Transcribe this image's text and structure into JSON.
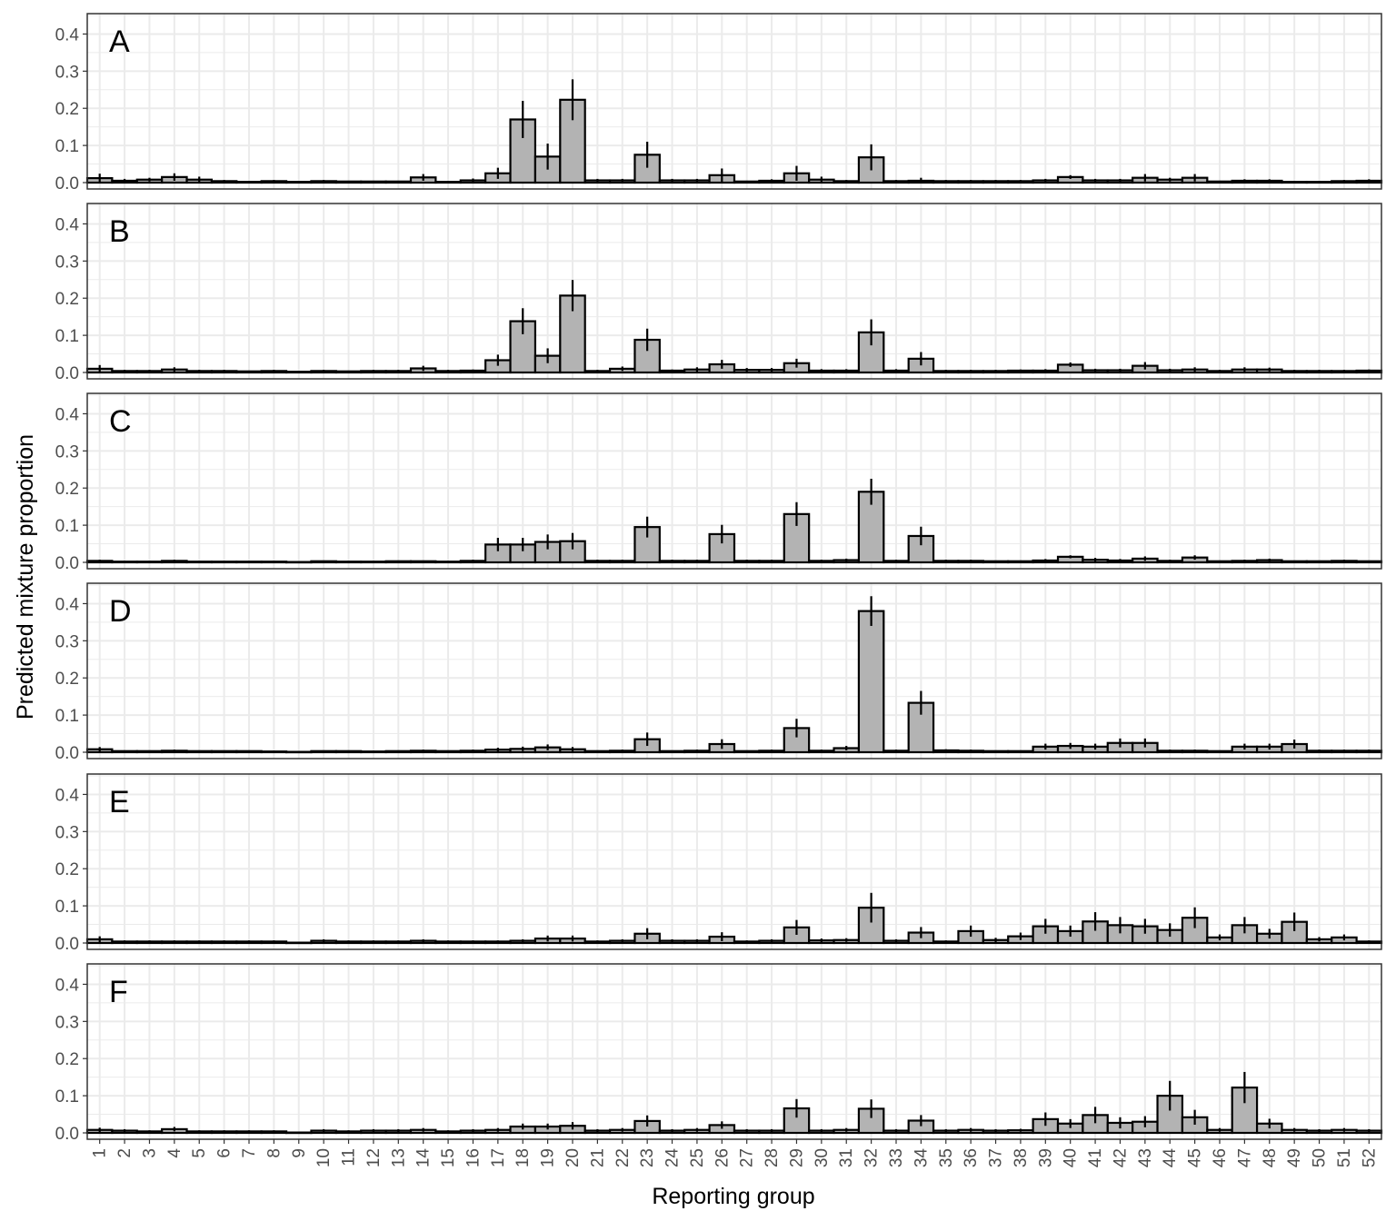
{
  "chart_data": {
    "type": "bar",
    "xlabel": "Reporting group",
    "ylabel": "Predicted mixture proportion",
    "ylim": [
      0,
      0.45
    ],
    "y_ticks": [
      "0.0",
      "0.1",
      "0.2",
      "0.3",
      "0.4"
    ],
    "y_tick_values": [
      0,
      0.1,
      0.2,
      0.3,
      0.4
    ],
    "categories": [
      "1",
      "2",
      "3",
      "4",
      "5",
      "6",
      "7",
      "8",
      "9",
      "10",
      "11",
      "12",
      "13",
      "14",
      "15",
      "16",
      "17",
      "18",
      "19",
      "20",
      "21",
      "22",
      "23",
      "24",
      "25",
      "26",
      "27",
      "28",
      "29",
      "30",
      "31",
      "32",
      "33",
      "34",
      "35",
      "36",
      "37",
      "38",
      "39",
      "40",
      "41",
      "42",
      "43",
      "44",
      "45",
      "46",
      "47",
      "48",
      "49",
      "50",
      "51",
      "52"
    ],
    "grid": true,
    "bar_fill": "#b3b3b3",
    "bar_stroke": "#000000",
    "grid_color": "#ebebeb",
    "panels": [
      {
        "name": "A",
        "values": [
          0.012,
          0.005,
          0.008,
          0.015,
          0.008,
          0.004,
          0.002,
          0.004,
          0.002,
          0.004,
          0.003,
          0.003,
          0.003,
          0.014,
          0.002,
          0.006,
          0.025,
          0.17,
          0.07,
          0.223,
          0.006,
          0.006,
          0.075,
          0.006,
          0.006,
          0.02,
          0.003,
          0.005,
          0.025,
          0.008,
          0.004,
          0.068,
          0.004,
          0.005,
          0.004,
          0.004,
          0.004,
          0.004,
          0.006,
          0.015,
          0.006,
          0.006,
          0.013,
          0.008,
          0.013,
          0.003,
          0.005,
          0.005,
          0.002,
          0.002,
          0.004,
          0.005
        ],
        "errors": [
          0.012,
          0.005,
          0.005,
          0.01,
          0.008,
          0.003,
          0.002,
          0.003,
          0.001,
          0.003,
          0.002,
          0.002,
          0.002,
          0.009,
          0.002,
          0.005,
          0.015,
          0.05,
          0.035,
          0.055,
          0.004,
          0.004,
          0.035,
          0.004,
          0.004,
          0.018,
          0.002,
          0.004,
          0.02,
          0.008,
          0.003,
          0.035,
          0.003,
          0.008,
          0.003,
          0.003,
          0.003,
          0.003,
          0.004,
          0.005,
          0.004,
          0.004,
          0.01,
          0.005,
          0.01,
          0.002,
          0.004,
          0.004,
          0.002,
          0.002,
          0.003,
          0.004
        ]
      },
      {
        "name": "B",
        "values": [
          0.01,
          0.004,
          0.004,
          0.008,
          0.004,
          0.004,
          0.003,
          0.004,
          0.002,
          0.004,
          0.003,
          0.004,
          0.004,
          0.011,
          0.004,
          0.005,
          0.033,
          0.138,
          0.045,
          0.207,
          0.004,
          0.01,
          0.088,
          0.005,
          0.008,
          0.022,
          0.007,
          0.007,
          0.025,
          0.005,
          0.005,
          0.108,
          0.005,
          0.037,
          0.004,
          0.004,
          0.004,
          0.005,
          0.005,
          0.021,
          0.006,
          0.006,
          0.018,
          0.006,
          0.008,
          0.004,
          0.008,
          0.008,
          0.004,
          0.004,
          0.004,
          0.005
        ],
        "errors": [
          0.01,
          0.003,
          0.003,
          0.006,
          0.003,
          0.003,
          0.002,
          0.003,
          0.001,
          0.003,
          0.002,
          0.003,
          0.003,
          0.007,
          0.003,
          0.003,
          0.015,
          0.035,
          0.02,
          0.042,
          0.003,
          0.006,
          0.03,
          0.003,
          0.006,
          0.012,
          0.005,
          0.005,
          0.012,
          0.004,
          0.004,
          0.035,
          0.004,
          0.018,
          0.003,
          0.003,
          0.003,
          0.003,
          0.004,
          0.006,
          0.004,
          0.004,
          0.01,
          0.004,
          0.006,
          0.003,
          0.006,
          0.005,
          0.003,
          0.003,
          0.003,
          0.003
        ]
      },
      {
        "name": "C",
        "values": [
          0.004,
          0.002,
          0.002,
          0.004,
          0.002,
          0.002,
          0.002,
          0.002,
          0.001,
          0.003,
          0.002,
          0.002,
          0.003,
          0.003,
          0.002,
          0.004,
          0.048,
          0.048,
          0.055,
          0.057,
          0.004,
          0.004,
          0.095,
          0.004,
          0.004,
          0.076,
          0.004,
          0.004,
          0.13,
          0.004,
          0.006,
          0.19,
          0.004,
          0.071,
          0.004,
          0.004,
          0.003,
          0.003,
          0.005,
          0.015,
          0.007,
          0.005,
          0.01,
          0.004,
          0.013,
          0.003,
          0.004,
          0.006,
          0.003,
          0.003,
          0.004,
          0.003
        ],
        "errors": [
          0.003,
          0.002,
          0.002,
          0.003,
          0.002,
          0.002,
          0.002,
          0.002,
          0.001,
          0.002,
          0.002,
          0.002,
          0.002,
          0.002,
          0.002,
          0.003,
          0.018,
          0.018,
          0.02,
          0.022,
          0.003,
          0.003,
          0.028,
          0.003,
          0.003,
          0.025,
          0.003,
          0.003,
          0.032,
          0.003,
          0.004,
          0.035,
          0.003,
          0.025,
          0.003,
          0.003,
          0.002,
          0.002,
          0.004,
          0.004,
          0.005,
          0.004,
          0.006,
          0.003,
          0.006,
          0.002,
          0.003,
          0.004,
          0.002,
          0.002,
          0.003,
          0.002
        ]
      },
      {
        "name": "D",
        "values": [
          0.008,
          0.003,
          0.003,
          0.004,
          0.003,
          0.003,
          0.003,
          0.002,
          0.001,
          0.003,
          0.003,
          0.002,
          0.003,
          0.004,
          0.003,
          0.004,
          0.007,
          0.009,
          0.013,
          0.008,
          0.003,
          0.004,
          0.035,
          0.003,
          0.004,
          0.022,
          0.003,
          0.004,
          0.065,
          0.004,
          0.011,
          0.38,
          0.004,
          0.133,
          0.005,
          0.004,
          0.003,
          0.003,
          0.015,
          0.017,
          0.015,
          0.025,
          0.025,
          0.004,
          0.004,
          0.003,
          0.015,
          0.015,
          0.022,
          0.004,
          0.004,
          0.004
        ],
        "errors": [
          0.006,
          0.002,
          0.002,
          0.003,
          0.002,
          0.002,
          0.002,
          0.002,
          0.001,
          0.002,
          0.002,
          0.002,
          0.002,
          0.003,
          0.002,
          0.003,
          0.005,
          0.006,
          0.008,
          0.006,
          0.002,
          0.003,
          0.018,
          0.002,
          0.003,
          0.013,
          0.002,
          0.003,
          0.025,
          0.003,
          0.006,
          0.04,
          0.003,
          0.032,
          0.003,
          0.003,
          0.002,
          0.002,
          0.008,
          0.008,
          0.008,
          0.012,
          0.012,
          0.003,
          0.003,
          0.002,
          0.008,
          0.008,
          0.012,
          0.003,
          0.003,
          0.003
        ]
      },
      {
        "name": "E",
        "values": [
          0.01,
          0.004,
          0.004,
          0.004,
          0.004,
          0.004,
          0.004,
          0.004,
          0.001,
          0.006,
          0.004,
          0.004,
          0.004,
          0.006,
          0.004,
          0.004,
          0.004,
          0.006,
          0.012,
          0.012,
          0.004,
          0.006,
          0.025,
          0.006,
          0.006,
          0.017,
          0.004,
          0.006,
          0.042,
          0.007,
          0.008,
          0.095,
          0.006,
          0.028,
          0.004,
          0.032,
          0.008,
          0.018,
          0.045,
          0.032,
          0.058,
          0.048,
          0.045,
          0.035,
          0.068,
          0.015,
          0.048,
          0.025,
          0.057,
          0.01,
          0.015,
          0.004
        ],
        "errors": [
          0.008,
          0.003,
          0.003,
          0.003,
          0.003,
          0.003,
          0.003,
          0.003,
          0.001,
          0.004,
          0.003,
          0.003,
          0.003,
          0.004,
          0.003,
          0.003,
          0.003,
          0.004,
          0.008,
          0.008,
          0.003,
          0.004,
          0.015,
          0.004,
          0.004,
          0.012,
          0.003,
          0.004,
          0.02,
          0.005,
          0.005,
          0.04,
          0.004,
          0.015,
          0.003,
          0.015,
          0.006,
          0.01,
          0.02,
          0.015,
          0.025,
          0.022,
          0.02,
          0.018,
          0.028,
          0.008,
          0.022,
          0.013,
          0.025,
          0.006,
          0.008,
          0.003
        ]
      },
      {
        "name": "F",
        "values": [
          0.008,
          0.006,
          0.004,
          0.01,
          0.004,
          0.004,
          0.004,
          0.004,
          0.001,
          0.006,
          0.004,
          0.006,
          0.006,
          0.008,
          0.004,
          0.006,
          0.008,
          0.017,
          0.017,
          0.019,
          0.006,
          0.008,
          0.032,
          0.006,
          0.008,
          0.021,
          0.006,
          0.006,
          0.066,
          0.006,
          0.008,
          0.065,
          0.006,
          0.033,
          0.006,
          0.008,
          0.006,
          0.007,
          0.037,
          0.025,
          0.048,
          0.027,
          0.03,
          0.1,
          0.042,
          0.008,
          0.122,
          0.025,
          0.008,
          0.006,
          0.008,
          0.006
        ],
        "errors": [
          0.006,
          0.004,
          0.003,
          0.006,
          0.003,
          0.003,
          0.003,
          0.003,
          0.001,
          0.004,
          0.003,
          0.004,
          0.004,
          0.005,
          0.003,
          0.004,
          0.005,
          0.008,
          0.008,
          0.01,
          0.004,
          0.005,
          0.015,
          0.004,
          0.005,
          0.01,
          0.004,
          0.004,
          0.025,
          0.004,
          0.005,
          0.025,
          0.004,
          0.015,
          0.004,
          0.005,
          0.004,
          0.004,
          0.018,
          0.012,
          0.022,
          0.015,
          0.015,
          0.04,
          0.02,
          0.005,
          0.042,
          0.013,
          0.005,
          0.004,
          0.005,
          0.004
        ]
      }
    ]
  }
}
